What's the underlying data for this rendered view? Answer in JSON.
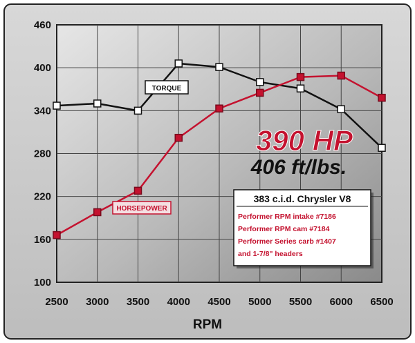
{
  "chart_data": {
    "type": "line",
    "xlabel": "RPM",
    "ylabel": "",
    "x": [
      2500,
      3000,
      3500,
      4000,
      4500,
      5000,
      5500,
      6000,
      6500
    ],
    "xlim": [
      2500,
      6500
    ],
    "ylim": [
      100,
      460
    ],
    "yticks": [
      100,
      160,
      220,
      280,
      340,
      400,
      460
    ],
    "grid": true,
    "series": [
      {
        "name": "TORQUE",
        "color": "#111111",
        "marker_fill": "#ffffff",
        "values": [
          347,
          350,
          340,
          406,
          401,
          380,
          371,
          342,
          288
        ]
      },
      {
        "name": "HORSEPOWER",
        "color": "#c4122f",
        "marker_fill": "#c4122f",
        "values": [
          166,
          198,
          228,
          302,
          343,
          365,
          387,
          389,
          358
        ]
      }
    ],
    "annotations": {
      "hp_peak": "390 HP",
      "torque_peak": "406 ft/lbs.",
      "info_title": "383 c.i.d. Chrysler V8",
      "info_lines": [
        "Performer RPM intake #7186",
        "Performer RPM cam #7184",
        "Performer Series carb #1407",
        "and 1-7/8\" headers"
      ]
    }
  }
}
